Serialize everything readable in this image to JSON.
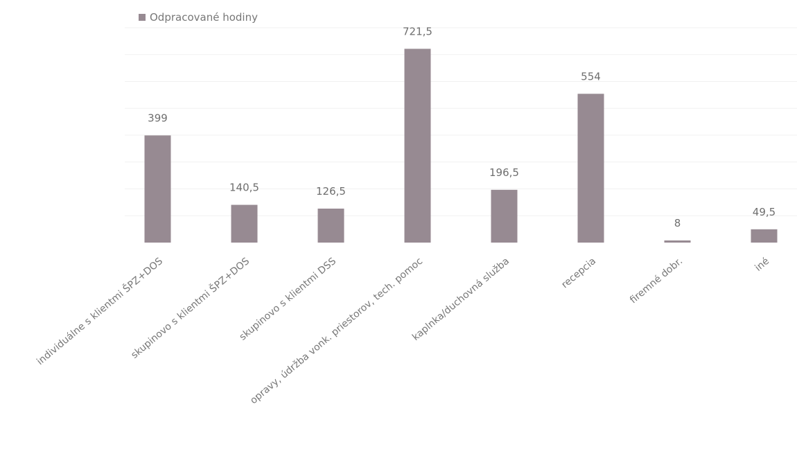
{
  "chart_data": {
    "type": "bar",
    "categories": [
      "individuálne s klientmi ŠPZ+DOS",
      "skupinovo s klientmi ŠPZ+DOS",
      "skupinovo s klientmi DSS",
      "opravy, údržba vonk. priestorov, tech. pomoc",
      "kaplnka/duchovná služba",
      "recepcia",
      "firemné dobr.",
      "iné"
    ],
    "series": [
      {
        "name": "Odpracované hodiny",
        "values": [
          399,
          140.5,
          126.5,
          721.5,
          196.5,
          554,
          8,
          49.5
        ],
        "value_labels": [
          "399",
          "140,5",
          "126,5",
          "721,5",
          "196,5",
          "554",
          "8",
          "49,5"
        ],
        "color": "#978a92"
      }
    ],
    "ylim": [
      0,
      800
    ],
    "grid": true,
    "legend_position": "top-left"
  }
}
